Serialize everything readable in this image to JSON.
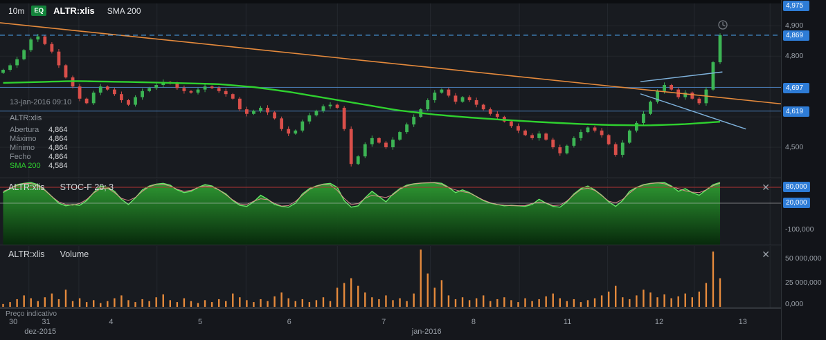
{
  "colors": {
    "bg": "#101216",
    "panel_bg": "#181b20",
    "grid": "#24282e",
    "text": "#e8eaed",
    "text_dim": "#9aa0a8",
    "candle_up": "#3cb454",
    "candle_down": "#d94f4a",
    "sma": "#2fd12f",
    "orange_line": "#e58a3c",
    "blue_line": "#4f87c7",
    "badge_blue": "#2e7cd6",
    "stoch_line": "#66e866",
    "stoch_signal": "#e89090",
    "stoch_80": "#b23333",
    "stoch_20": "#c8c8c8",
    "volume_bar": "#e58a3c"
  },
  "toolbar": {
    "timeframe": "10m",
    "eq_badge": "EQ",
    "symbol": "ALTR:xlis",
    "indicator": "SMA 200"
  },
  "legend": {
    "datetime": "13-jan-2016 09:10",
    "symbol": "ALTR:xlis",
    "rows": [
      {
        "label": "Abertura",
        "value": "4,864"
      },
      {
        "label": "Máximo",
        "value": "4,864"
      },
      {
        "label": "Mínimo",
        "value": "4,864"
      },
      {
        "label": "Fecho",
        "value": "4,864"
      }
    ],
    "sma_label": "SMA 200",
    "sma_value": "4,584"
  },
  "price_axis": {
    "top_badge": "4,975",
    "labels": [
      {
        "text": "4,900",
        "price": 4900
      },
      {
        "text": "4,800",
        "price": 4800
      },
      {
        "text": "4,500",
        "price": 4500
      }
    ],
    "badges": [
      {
        "text": "4,869",
        "price": 4869
      },
      {
        "text": "4,697",
        "price": 4697
      },
      {
        "text": "4,619",
        "price": 4619
      }
    ]
  },
  "stoch_panel": {
    "symbol": "ALTR:xlis",
    "name": "STOC-F 20; 3",
    "close_label": "✕",
    "axis_badges": [
      {
        "text": "80,000",
        "value": 80
      },
      {
        "text": "20,000",
        "value": 20
      }
    ],
    "axis_label": {
      "text": "-100,000",
      "value": -100
    }
  },
  "volume_panel": {
    "symbol": "ALTR:xlis",
    "name": "Volume",
    "close_label": "✕",
    "axis_labels": [
      {
        "text": "50 000,000",
        "value": 50
      },
      {
        "text": "25 000,000",
        "value": 25
      },
      {
        "text": "0,000",
        "value": 0
      }
    ]
  },
  "time_axis": {
    "ticks": [
      {
        "label": "30",
        "pos": 0.016
      },
      {
        "label": "31",
        "pos": 0.058
      },
      {
        "label": "4",
        "pos": 0.144
      },
      {
        "label": "5",
        "pos": 0.258
      },
      {
        "label": "6",
        "pos": 0.372
      },
      {
        "label": "7",
        "pos": 0.493
      },
      {
        "label": "8",
        "pos": 0.608
      },
      {
        "label": "11",
        "pos": 0.726
      },
      {
        "label": "12",
        "pos": 0.843
      },
      {
        "label": "13",
        "pos": 0.95
      }
    ],
    "months": [
      {
        "label": "dez-2015",
        "pos": 0.049
      },
      {
        "label": "jan-2016",
        "pos": 0.545
      }
    ],
    "note": "Preço indicativo"
  },
  "chart_data": {
    "type": "candlestick",
    "title": "ALTR:xlis 10m with SMA 200, STOC-F 20;3 and Volume",
    "symbol": "ALTR:xlis",
    "timeframe": "10m",
    "price_ylim": [
      4400,
      4985
    ],
    "candles_span": [
      0.004,
      0.922
    ],
    "closes": [
      4755,
      4770,
      4790,
      4820,
      4855,
      4865,
      4840,
      4815,
      4770,
      4730,
      4700,
      4660,
      4645,
      4680,
      4700,
      4690,
      4675,
      4655,
      4640,
      4665,
      4685,
      4695,
      4705,
      4715,
      4710,
      4695,
      4685,
      4680,
      4690,
      4700,
      4695,
      4685,
      4675,
      4660,
      4625,
      4610,
      4620,
      4630,
      4615,
      4595,
      4560,
      4545,
      4555,
      4585,
      4605,
      4620,
      4635,
      4640,
      4630,
      4560,
      4445,
      4470,
      4510,
      4530,
      4515,
      4500,
      4525,
      4550,
      4575,
      4600,
      4625,
      4655,
      4680,
      4690,
      4670,
      4650,
      4665,
      4655,
      4640,
      4625,
      4610,
      4600,
      4585,
      4570,
      4555,
      4540,
      4530,
      4545,
      4525,
      4500,
      4480,
      4505,
      4530,
      4550,
      4565,
      4555,
      4540,
      4510,
      4475,
      4515,
      4555,
      4580,
      4610,
      4650,
      4685,
      4705,
      4690,
      4665,
      4680,
      4660,
      4645,
      4690,
      4780,
      4869
    ],
    "sma200_keyframes": [
      {
        "x": 0.0,
        "p": 4712
      },
      {
        "x": 0.1,
        "p": 4718
      },
      {
        "x": 0.2,
        "p": 4714
      },
      {
        "x": 0.3,
        "p": 4708
      },
      {
        "x": 0.35,
        "p": 4698
      },
      {
        "x": 0.4,
        "p": 4682
      },
      {
        "x": 0.45,
        "p": 4662
      },
      {
        "x": 0.5,
        "p": 4642
      },
      {
        "x": 0.55,
        "p": 4622
      },
      {
        "x": 0.6,
        "p": 4608
      },
      {
        "x": 0.65,
        "p": 4598
      },
      {
        "x": 0.7,
        "p": 4590
      },
      {
        "x": 0.75,
        "p": 4583
      },
      {
        "x": 0.8,
        "p": 4577
      },
      {
        "x": 0.85,
        "p": 4573
      },
      {
        "x": 0.9,
        "p": 4572
      },
      {
        "x": 0.95,
        "p": 4576
      },
      {
        "x": 1.0,
        "p": 4584
      }
    ],
    "overlays": {
      "current_price_line": 4869,
      "hlines": [
        4697,
        4619
      ],
      "gridline_prices": [
        4900,
        4800,
        4700,
        4600,
        4500
      ],
      "trend_orange": {
        "x1": 0,
        "p1": 4910,
        "x2": 1,
        "p2": 4643
      },
      "trend_blue": [
        {
          "x1": 0.82,
          "p1": 4716,
          "x2": 0.925,
          "p2": 4748
        },
        {
          "x1": 0.82,
          "p1": 4676,
          "x2": 0.955,
          "p2": 4560
        }
      ]
    },
    "stochastic": {
      "name": "STOC-F 20; 3",
      "levels": [
        80,
        20
      ],
      "range": [
        -100,
        110
      ],
      "values": [
        60,
        75,
        90,
        95,
        98,
        90,
        70,
        45,
        20,
        10,
        15,
        12,
        30,
        60,
        85,
        80,
        65,
        35,
        15,
        40,
        70,
        85,
        92,
        95,
        88,
        70,
        60,
        65,
        80,
        90,
        85,
        70,
        55,
        30,
        12,
        8,
        25,
        50,
        35,
        15,
        8,
        5,
        20,
        55,
        75,
        85,
        92,
        95,
        80,
        30,
        5,
        10,
        40,
        65,
        45,
        25,
        55,
        75,
        88,
        93,
        96,
        97,
        98,
        95,
        80,
        60,
        70,
        60,
        45,
        30,
        20,
        15,
        10,
        12,
        10,
        8,
        15,
        35,
        20,
        8,
        5,
        25,
        55,
        75,
        85,
        70,
        50,
        25,
        8,
        30,
        65,
        80,
        90,
        95,
        97,
        98,
        85,
        65,
        75,
        60,
        50,
        70,
        90,
        98
      ]
    },
    "volume": {
      "unit": "millions",
      "values": [
        3,
        5,
        8,
        12,
        9,
        6,
        10,
        14,
        8,
        18,
        6,
        9,
        5,
        7,
        4,
        6,
        9,
        12,
        7,
        5,
        8,
        6,
        10,
        13,
        7,
        5,
        9,
        6,
        4,
        7,
        5,
        8,
        6,
        14,
        10,
        7,
        5,
        8,
        6,
        11,
        15,
        9,
        6,
        8,
        5,
        7,
        10,
        6,
        20,
        25,
        30,
        22,
        15,
        10,
        8,
        12,
        7,
        9,
        6,
        14,
        60,
        35,
        20,
        28,
        12,
        8,
        10,
        7,
        9,
        12,
        6,
        8,
        10,
        7,
        5,
        9,
        6,
        8,
        11,
        14,
        9,
        6,
        8,
        5,
        7,
        9,
        12,
        16,
        22,
        10,
        8,
        12,
        18,
        15,
        10,
        13,
        9,
        11,
        14,
        10,
        16,
        25,
        58,
        30
      ]
    },
    "time_gridlines": [
      0.037,
      0.101,
      0.201,
      0.315,
      0.432,
      0.551,
      0.665,
      0.778,
      0.889,
      0.986
    ]
  }
}
